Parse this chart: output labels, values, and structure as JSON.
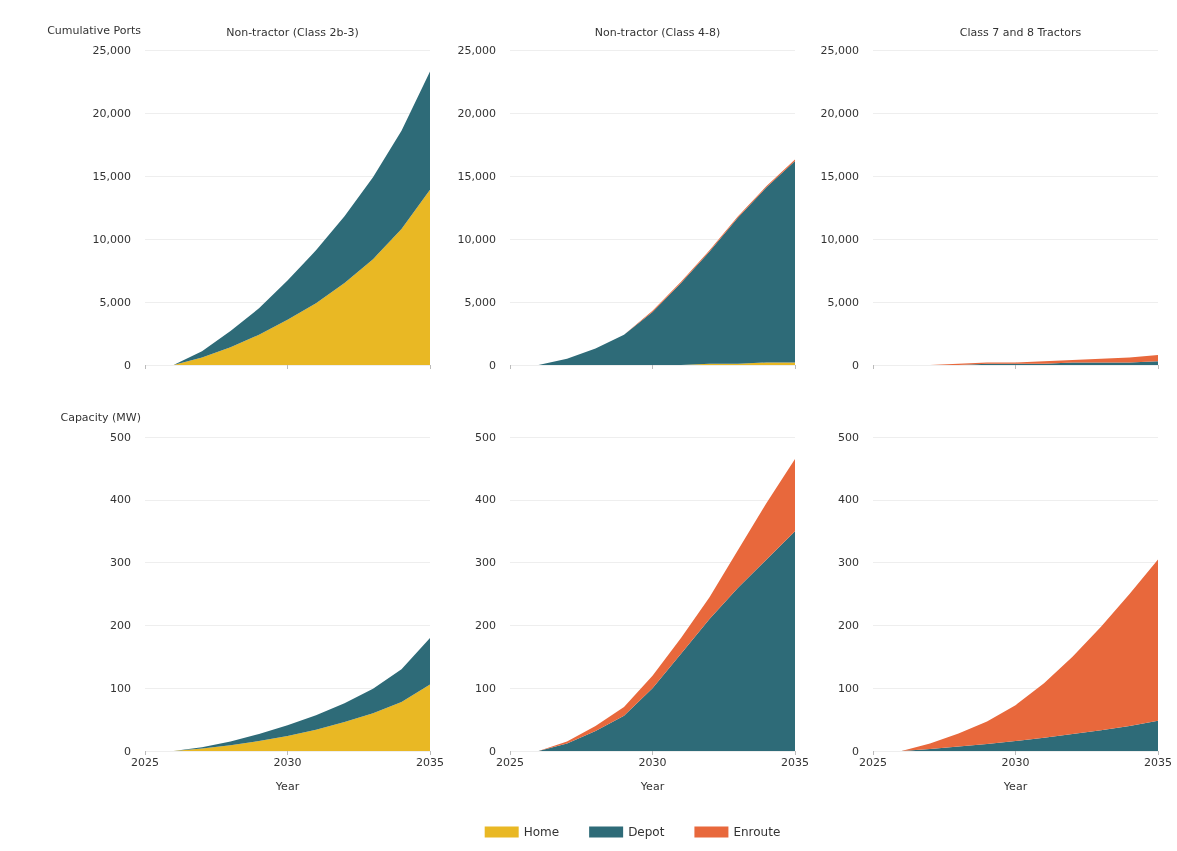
{
  "chart_data": [
    {
      "type": "area",
      "title": "Non-tractor (Class 2b-3)",
      "ylabel": "Cumulative Ports",
      "stacked": true,
      "grid": "y",
      "tick_labels": "y",
      "legend": false,
      "x": [
        2026,
        2027,
        2028,
        2029,
        2030,
        2031,
        2032,
        2033,
        2034,
        2035
      ],
      "xlim": [
        2025,
        2035
      ],
      "xticks": [
        2025,
        2030,
        2035
      ],
      "ylim": [
        0,
        25000
      ],
      "yticks": [
        0,
        {
          "value": 5000,
          "label": "5,000"
        },
        {
          "value": 10000,
          "label": "10,000"
        },
        {
          "value": 15000,
          "label": "15,000"
        },
        {
          "value": 20000,
          "label": "20,000"
        },
        {
          "value": 25000,
          "label": "25,000"
        }
      ],
      "series": [
        {
          "color": "#e9b824",
          "values": [
            0,
            600,
            1400,
            2400,
            3600,
            4900,
            6500,
            8400,
            10800,
            13900
          ]
        },
        {
          "color": "#2e6b78",
          "values": [
            0,
            500,
            1300,
            2100,
            3100,
            4200,
            5300,
            6500,
            7800,
            9400
          ]
        }
      ]
    },
    {
      "type": "area",
      "title": "Non-tractor (Class 4-8)",
      "stacked": true,
      "grid": "y",
      "tick_labels": "y",
      "legend": "bottom",
      "x": [
        2026,
        2027,
        2028,
        2029,
        2030,
        2031,
        2032,
        2033,
        2034,
        2035
      ],
      "xlim": [
        2025,
        2035
      ],
      "xticks": [
        2025,
        2030,
        2035
      ],
      "ylim": [
        0,
        25000
      ],
      "yticks": [
        0,
        {
          "value": 5000,
          "label": "5,000"
        },
        {
          "value": 10000,
          "label": "10,000"
        },
        {
          "value": 15000,
          "label": "15,000"
        },
        {
          "value": 20000,
          "label": "20,000"
        },
        {
          "value": 25000,
          "label": "25,000"
        }
      ],
      "series": [
        {
          "name": "Home",
          "color": "#e9b824",
          "values": [
            0,
            0,
            0,
            0,
            0,
            0,
            100,
            100,
            200,
            200
          ]
        },
        {
          "name": "Depot",
          "color": "#2e6b78",
          "values": [
            0,
            500,
            1300,
            2400,
            4200,
            6500,
            8900,
            11600,
            13900,
            16000
          ]
        },
        {
          "name": "Enroute",
          "color": "#e8683c",
          "values": [
            0,
            0,
            0,
            0,
            100,
            100,
            100,
            100,
            100,
            100
          ]
        }
      ]
    },
    {
      "type": "area",
      "title": "Class 7 and 8 Tractors",
      "stacked": true,
      "grid": "y",
      "tick_labels": "y",
      "legend": false,
      "x": [
        2026,
        2027,
        2028,
        2029,
        2030,
        2031,
        2032,
        2033,
        2034,
        2035
      ],
      "xlim": [
        2025,
        2035
      ],
      "xticks": [
        2025,
        2030,
        2035
      ],
      "ylim": [
        0,
        25000
      ],
      "yticks": [
        0,
        {
          "value": 5000,
          "label": "5,000"
        },
        {
          "value": 10000,
          "label": "10,000"
        },
        {
          "value": 15000,
          "label": "15,000"
        },
        {
          "value": 20000,
          "label": "20,000"
        },
        {
          "value": 25000,
          "label": "25,000"
        }
      ],
      "series": [
        {
          "color": "#2e6b78",
          "values": [
            0,
            0,
            0,
            100,
            100,
            100,
            200,
            200,
            200,
            300
          ]
        },
        {
          "color": "#e8683c",
          "values": [
            0,
            0,
            100,
            100,
            100,
            200,
            200,
            300,
            400,
            500
          ]
        }
      ]
    },
    {
      "type": "area",
      "ylabel": "Capacity (MW)",
      "xlabel": "Year",
      "stacked": true,
      "grid": "y",
      "legend": false,
      "x": [
        2026,
        2027,
        2028,
        2029,
        2030,
        2031,
        2032,
        2033,
        2034,
        2035
      ],
      "xlim": [
        2025,
        2035
      ],
      "xticks": [
        2025,
        2030,
        2035
      ],
      "ylim": [
        0,
        500
      ],
      "yticks": [
        0,
        100,
        200,
        300,
        400,
        500
      ],
      "series": [
        {
          "color": "#e9b824",
          "values": [
            0,
            4,
            9,
            16,
            24,
            34,
            46,
            60,
            78,
            106
          ]
        },
        {
          "color": "#2e6b78",
          "values": [
            0,
            2,
            6,
            11,
            17,
            23,
            30,
            39,
            52,
            74
          ]
        }
      ]
    },
    {
      "type": "area",
      "xlabel": "Year",
      "stacked": true,
      "grid": "y",
      "legend": false,
      "x": [
        2026,
        2027,
        2028,
        2029,
        2030,
        2031,
        2032,
        2033,
        2034,
        2035
      ],
      "xlim": [
        2025,
        2035
      ],
      "xticks": [
        2025,
        2030,
        2035
      ],
      "ylim": [
        0,
        500
      ],
      "yticks": [
        0,
        100,
        200,
        300,
        400,
        500
      ],
      "series": [
        {
          "color": "#2e6b78",
          "values": [
            0,
            12,
            32,
            56,
            100,
            155,
            210,
            260,
            305,
            350
          ]
        },
        {
          "color": "#e8683c",
          "values": [
            0,
            3,
            8,
            14,
            20,
            25,
            35,
            60,
            90,
            115
          ]
        }
      ]
    },
    {
      "type": "area",
      "xlabel": "Year",
      "stacked": true,
      "grid": "y",
      "legend": false,
      "x": [
        2026,
        2027,
        2028,
        2029,
        2030,
        2031,
        2032,
        2033,
        2034,
        2035
      ],
      "xlim": [
        2025,
        2035
      ],
      "xticks": [
        2025,
        2030,
        2035
      ],
      "ylim": [
        0,
        500
      ],
      "yticks": [
        0,
        100,
        200,
        300,
        400,
        500
      ],
      "series": [
        {
          "color": "#2e6b78",
          "values": [
            0,
            3,
            7,
            11,
            16,
            21,
            27,
            33,
            40,
            48
          ]
        },
        {
          "color": "#e8683c",
          "values": [
            0,
            9,
            21,
            36,
            57,
            87,
            123,
            165,
            210,
            257
          ]
        }
      ]
    }
  ]
}
